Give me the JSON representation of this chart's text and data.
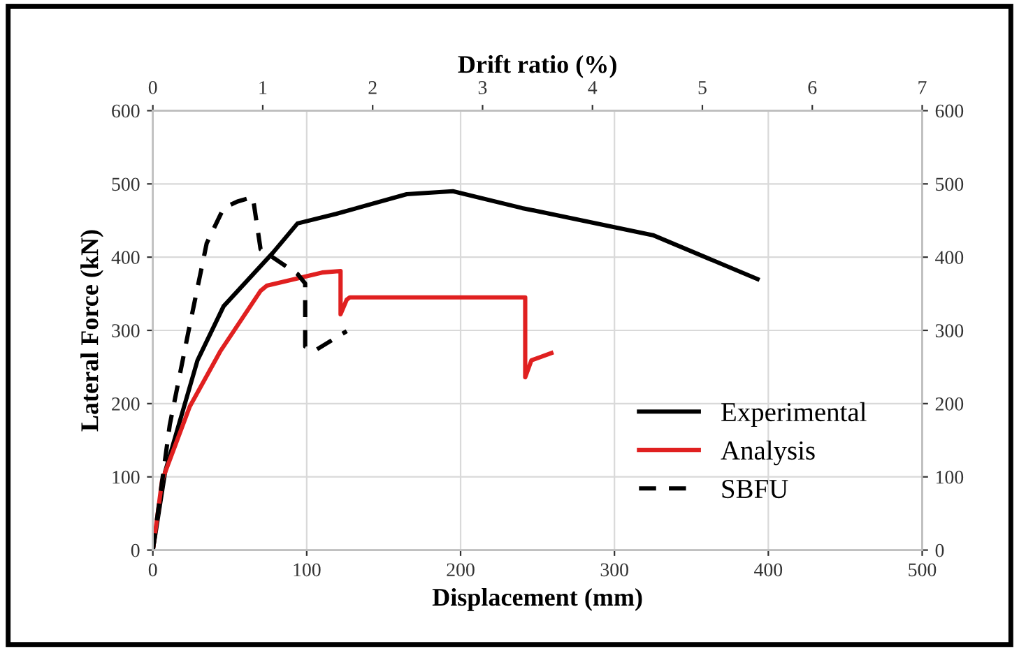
{
  "chart_data": {
    "type": "line",
    "xlabel": "Displacement (mm)",
    "ylabel": "Lateral Force (kN)",
    "x2label": "Drift ratio (%)",
    "xlim": [
      0,
      500
    ],
    "xticks": [
      0,
      100,
      200,
      300,
      400,
      500
    ],
    "ylim": [
      0,
      600
    ],
    "yticks": [
      0,
      100,
      200,
      300,
      400,
      500,
      600
    ],
    "x2lim": [
      0,
      7
    ],
    "x2ticks": [
      0,
      1,
      2,
      3,
      4,
      5,
      6,
      7
    ],
    "y2lim": [
      0,
      600
    ],
    "y2ticks": [
      0,
      100,
      200,
      300,
      400,
      500,
      600
    ],
    "grid": true,
    "legend": "bottom right",
    "marker": "none",
    "series": [
      {
        "name": "Experimental",
        "color": "#000000",
        "line_style": "solid",
        "x": [
          0,
          8,
          29,
          46,
          78,
          94,
          119,
          165,
          195,
          240,
          325,
          393
        ],
        "values": [
          0,
          107,
          259,
          333,
          406,
          446,
          459,
          486,
          490,
          467,
          430,
          370
        ]
      },
      {
        "name": "Analysis",
        "color": "#e02020",
        "line_style": "solid",
        "x": [
          0,
          6,
          24,
          44,
          70,
          74,
          110,
          122,
          122,
          126,
          128,
          242,
          242,
          246,
          259
        ],
        "values": [
          0,
          95,
          196,
          272,
          354,
          361,
          379,
          381,
          322,
          342,
          345,
          345,
          236,
          259,
          269
        ]
      },
      {
        "name": "SBFU",
        "color": "#000000",
        "line_style": "dashed",
        "x": [
          0,
          11,
          23,
          35,
          46,
          55,
          65,
          70,
          94,
          99,
          99,
          105,
          126
        ],
        "values": [
          0,
          171,
          297,
          419,
          467,
          476,
          482,
          411,
          377,
          364,
          278,
          272,
          299
        ]
      }
    ]
  }
}
